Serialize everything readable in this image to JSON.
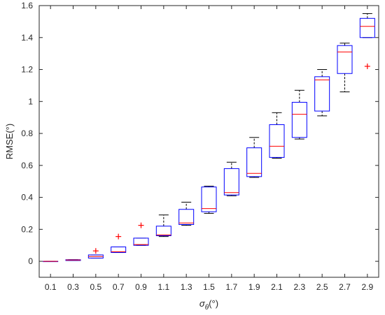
{
  "chart_data": {
    "type": "boxplot",
    "xlabel": {
      "base": "σ",
      "sub": "θ",
      "unit": "(°)"
    },
    "ylabel": "RMSE(°)",
    "ylim": [
      -0.1,
      1.6
    ],
    "yticks": [
      0,
      0.2,
      0.4,
      0.6,
      0.8,
      1,
      1.2,
      1.4,
      1.6
    ],
    "ytick_labels": [
      "0",
      "0.2",
      "0.4",
      "0.6",
      "0.8",
      "1",
      "1.2",
      "1.4",
      "1.6"
    ],
    "categories": [
      "0.1",
      "0.3",
      "0.5",
      "0.7",
      "0.9",
      "1.1",
      "1.3",
      "1.5",
      "1.7",
      "1.9",
      "2.1",
      "2.3",
      "2.5",
      "2.7",
      "2.9"
    ],
    "boxes": [
      {
        "x": "0.1",
        "whisker_low": 0.0,
        "q1": 0.0,
        "median": 0.0,
        "q3": 0.0,
        "whisker_high": 0.0,
        "outliers": []
      },
      {
        "x": "0.3",
        "whisker_low": 0.005,
        "q1": 0.005,
        "median": 0.008,
        "q3": 0.01,
        "whisker_high": 0.01,
        "outliers": []
      },
      {
        "x": "0.5",
        "whisker_low": 0.02,
        "q1": 0.02,
        "median": 0.03,
        "q3": 0.04,
        "whisker_high": 0.04,
        "outliers": [
          0.065
        ]
      },
      {
        "x": "0.7",
        "whisker_low": 0.055,
        "q1": 0.055,
        "median": 0.06,
        "q3": 0.09,
        "whisker_high": 0.09,
        "outliers": [
          0.155
        ]
      },
      {
        "x": "0.9",
        "whisker_low": 0.1,
        "q1": 0.1,
        "median": 0.105,
        "q3": 0.145,
        "whisker_high": 0.145,
        "outliers": [
          0.225
        ]
      },
      {
        "x": "1.1",
        "whisker_low": 0.155,
        "q1": 0.16,
        "median": 0.165,
        "q3": 0.22,
        "whisker_high": 0.29,
        "outliers": []
      },
      {
        "x": "1.3",
        "whisker_low": 0.225,
        "q1": 0.23,
        "median": 0.24,
        "q3": 0.325,
        "whisker_high": 0.37,
        "outliers": []
      },
      {
        "x": "1.5",
        "whisker_low": 0.3,
        "q1": 0.31,
        "median": 0.33,
        "q3": 0.465,
        "whisker_high": 0.47,
        "outliers": []
      },
      {
        "x": "1.7",
        "whisker_low": 0.41,
        "q1": 0.415,
        "median": 0.43,
        "q3": 0.58,
        "whisker_high": 0.62,
        "outliers": []
      },
      {
        "x": "1.9",
        "whisker_low": 0.525,
        "q1": 0.53,
        "median": 0.55,
        "q3": 0.71,
        "whisker_high": 0.775,
        "outliers": []
      },
      {
        "x": "2.1",
        "whisker_low": 0.645,
        "q1": 0.65,
        "median": 0.72,
        "q3": 0.855,
        "whisker_high": 0.93,
        "outliers": []
      },
      {
        "x": "2.3",
        "whisker_low": 0.765,
        "q1": 0.775,
        "median": 0.92,
        "q3": 0.995,
        "whisker_high": 1.07,
        "outliers": []
      },
      {
        "x": "2.5",
        "whisker_low": 0.91,
        "q1": 0.94,
        "median": 1.135,
        "q3": 1.155,
        "whisker_high": 1.2,
        "outliers": []
      },
      {
        "x": "2.7",
        "whisker_low": 1.06,
        "q1": 1.175,
        "median": 1.31,
        "q3": 1.35,
        "whisker_high": 1.365,
        "outliers": []
      },
      {
        "x": "2.9",
        "whisker_low": 1.4,
        "q1": 1.4,
        "median": 1.47,
        "q3": 1.52,
        "whisker_high": 1.55,
        "outliers": [
          1.22
        ]
      }
    ],
    "grid": false,
    "colors": {
      "box": "#0000ff",
      "median": "#ff0000",
      "whisker": "#000000",
      "outlier": "#ff0000",
      "axis": "#262626"
    }
  }
}
